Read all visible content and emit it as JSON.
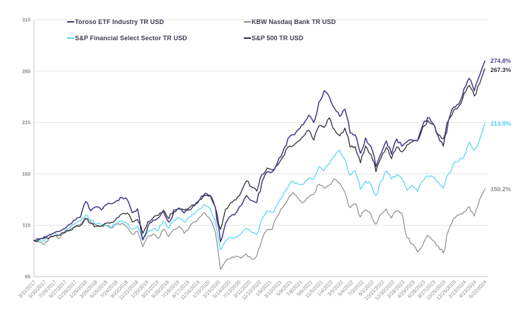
{
  "page": {
    "background": "#ffffff"
  },
  "chart_data": {
    "type": "line",
    "title": "",
    "xlabel": "",
    "ylabel": "",
    "grid": "horizontal",
    "legend_position": "top-inside-two-columns",
    "ylim": [
      65,
      315
    ],
    "y_ticks": [
      "315",
      "265",
      "215",
      "165",
      "115",
      "65"
    ],
    "x_start": "3/31/2017",
    "x_end": "6/22/2024",
    "sampling": "monthly, indexed to 100 at 3/31/2017",
    "x_tick_labels": [
      "3/31/2017",
      "5/30/2017",
      "7/29/2017",
      "9/27/2017",
      "11/26/2017",
      "1/25/2018",
      "3/26/2018",
      "5/25/2018",
      "7/24/2018",
      "9/22/2018",
      "11/21/2018",
      "1/20/2019",
      "3/21/2019",
      "5/20/2019",
      "7/19/2019",
      "9/17/2019",
      "11/16/2019",
      "1/15/2020",
      "3/15/2020",
      "5/14/2020",
      "7/13/2020",
      "9/11/2020",
      "11/10/2020",
      "1/9/2021",
      "3/10/2021",
      "5/9/2021",
      "7/8/2021",
      "9/6/2021",
      "11/5/2021",
      "1/4/2022",
      "3/5/2022",
      "5/4/2022",
      "7/3/2022",
      "9/1/2022",
      "10/31/2022",
      "12/30/2022",
      "2/28/2023",
      "4/29/2023",
      "6/28/2023",
      "8/27/2023",
      "10/26/2023",
      "12/25/2023",
      "2/23/2024",
      "4/23/2024",
      "6/22/2024"
    ],
    "series": [
      {
        "name": "Toroso ETF Industry TR USD",
        "color": "#423787",
        "label_color": "#4a3f94",
        "end_label": "274.8%",
        "stroke_width": 1.5,
        "z": 4,
        "values": [
          100,
          101.5,
          104,
          105.5,
          108,
          109,
          112,
          116,
          120,
          123,
          138,
          129,
          133,
          130,
          135,
          136,
          139,
          142,
          140,
          127,
          131,
          101,
          114,
          120,
          122,
          128,
          118,
          128,
          131,
          127,
          130,
          134,
          140,
          146,
          144,
          133,
          99,
          117,
          124,
          127,
          134,
          144,
          139,
          137,
          157,
          167,
          167,
          176,
          186,
          199,
          203,
          208,
          213,
          222,
          215,
          235,
          246,
          240,
          229,
          221,
          228,
          205,
          203,
          185,
          200,
          192,
          172,
          185,
          197,
          184,
          199,
          192,
          196,
          198,
          197,
          212,
          220,
          214,
          202,
          192,
          217,
          230,
          233,
          248,
          258,
          246,
          261,
          274.8
        ]
      },
      {
        "name": "KBW Nasdaq Bank TR USD",
        "color": "#8e8e8e",
        "label_color": "#8c8c8c",
        "end_label": "150.2%",
        "stroke_width": 1.2,
        "z": 1,
        "values": [
          100,
          99,
          96,
          103,
          105,
          102.5,
          109,
          111,
          114,
          116,
          122,
          118,
          115,
          114,
          115,
          112,
          116,
          117,
          113,
          106,
          109,
          94,
          104,
          106.5,
          102,
          111,
          104,
          111,
          114,
          107,
          113,
          118,
          123,
          127,
          121,
          108,
          72,
          80,
          83,
          85,
          83,
          87,
          82,
          85,
          101,
          111,
          111,
          124,
          132,
          140,
          147,
          141,
          137,
          142,
          145,
          155,
          151,
          154,
          160,
          156,
          147,
          132,
          136,
          123,
          130,
          126,
          116,
          126,
          131,
          122,
          129,
          127,
          103,
          97,
          89,
          95,
          105,
          100,
          95,
          88,
          110,
          122,
          125,
          128,
          133,
          124,
          140,
          150.2
        ]
      },
      {
        "name": "S&P Financial Select Sector TR USD",
        "color": "#5ed7f6",
        "label_color": "#45cff2",
        "end_label": "213.9%",
        "stroke_width": 1.3,
        "z": 2,
        "values": [
          100,
          101,
          100,
          106,
          108,
          105.5,
          110,
          113,
          117,
          119,
          125,
          120,
          116,
          116,
          115,
          113,
          118,
          119.5,
          117,
          111,
          114,
          100,
          109,
          111.5,
          110,
          119,
          112,
          120,
          122.5,
          118,
          123,
          126,
          131,
          135,
          131,
          120,
          91,
          100,
          103,
          103,
          107,
          112,
          108,
          106,
          121,
          129,
          127,
          135,
          143,
          152,
          158,
          155,
          155,
          161,
          160,
          172,
          168,
          175,
          182,
          188,
          179,
          164,
          168,
          150,
          158,
          155,
          144,
          158,
          168,
          160,
          164,
          160,
          149,
          154,
          148,
          158,
          163,
          162,
          157,
          151,
          165,
          175,
          178,
          182,
          196,
          188,
          198,
          213.9
        ]
      },
      {
        "name": "S&P 500 TR USD",
        "color": "#31313d",
        "label_color": "#2f2f3a",
        "end_label": "267.3%",
        "stroke_width": 1.3,
        "z": 3,
        "values": [
          100,
          101,
          102.4,
          103,
          105.1,
          105.4,
          107.6,
          110.1,
          113.4,
          114.7,
          121.3,
          116.8,
          113.8,
          114.3,
          117,
          117.7,
          122.1,
          126.1,
          126.8,
          118.1,
          120.5,
          107,
          118.4,
          122.2,
          124.6,
          129.7,
          121.4,
          130,
          131.8,
          129.7,
          132.2,
          135,
          139.9,
          144.1,
          144.1,
          132.2,
          111,
          130.8,
          137,
          139.7,
          147.6,
          158.2,
          152.2,
          148.2,
          164.4,
          170.7,
          168.9,
          173.6,
          181.2,
          190.9,
          192.2,
          196.7,
          201.4,
          207.5,
          197.8,
          211.7,
          210.2,
          219.6,
          208.2,
          202,
          209.5,
          191.2,
          191.6,
          175.8,
          192,
          184.2,
          167.2,
          180.7,
          190.8,
          179.8,
          191.1,
          186.4,
          193.3,
          196.3,
          197.2,
          210.2,
          217,
          213.5,
          203.3,
          199.1,
          217.2,
          227.1,
          230.9,
          243.2,
          251.1,
          240.8,
          252.8,
          267.3
        ]
      }
    ],
    "legend_order": [
      "Toroso ETF Industry TR USD",
      "KBW Nasdaq Bank TR USD",
      "S&P Financial Select Sector TR USD",
      "S&P 500 TR USD"
    ],
    "colors": {
      "grid_line": "#e3e3e3",
      "axis_line": "#c4c4c4",
      "tick_text": "#8a8a8a",
      "legend_text": "#3d3d52"
    }
  }
}
